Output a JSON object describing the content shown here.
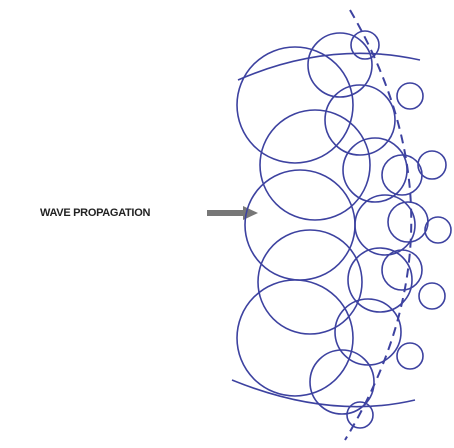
{
  "label": "WAVE PROPAGATION"
}
